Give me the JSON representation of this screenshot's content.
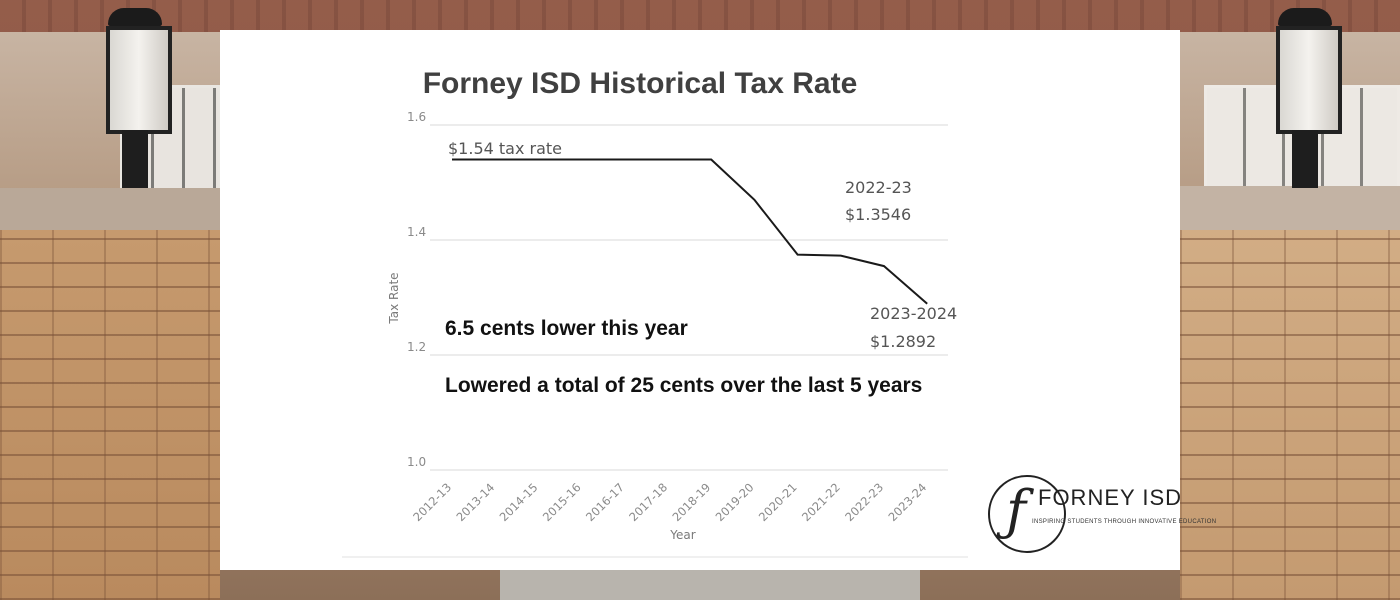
{
  "chart_data": {
    "type": "line",
    "title": "Forney ISD Historical Tax Rate",
    "xlabel": "Year",
    "ylabel": "Tax Rate",
    "categories": [
      "2012-13",
      "2013-14",
      "2014-15",
      "2015-16",
      "2016-17",
      "2017-18",
      "2018-19",
      "2019-20",
      "2020-21",
      "2021-22",
      "2022-23",
      "2023-24"
    ],
    "series": [
      {
        "values": [
          1.54,
          1.54,
          1.54,
          1.54,
          1.54,
          1.54,
          1.54,
          1.47,
          1.3746,
          1.3728,
          1.3546,
          1.2892
        ]
      }
    ],
    "yticks": [
      "1.6",
      "1.4",
      "1.2",
      "1.0"
    ],
    "ylim": [
      1.0,
      1.6
    ],
    "grid": true,
    "annotations": {
      "start_label": "$1.54 tax rate",
      "mid_label_year": "2022-23",
      "mid_label_value": "$1.3546",
      "end_label_year": "2023-2024",
      "end_label_value": "$1.2892",
      "callout_1": "6.5 cents lower this year",
      "callout_2": "Lowered a total of 25 cents over the last 5 years"
    },
    "line_color": "#1a1a1a"
  },
  "logo": {
    "name": "FORNEY ISD",
    "tagline": "INSPIRING STUDENTS THROUGH INNOVATIVE EDUCATION"
  }
}
